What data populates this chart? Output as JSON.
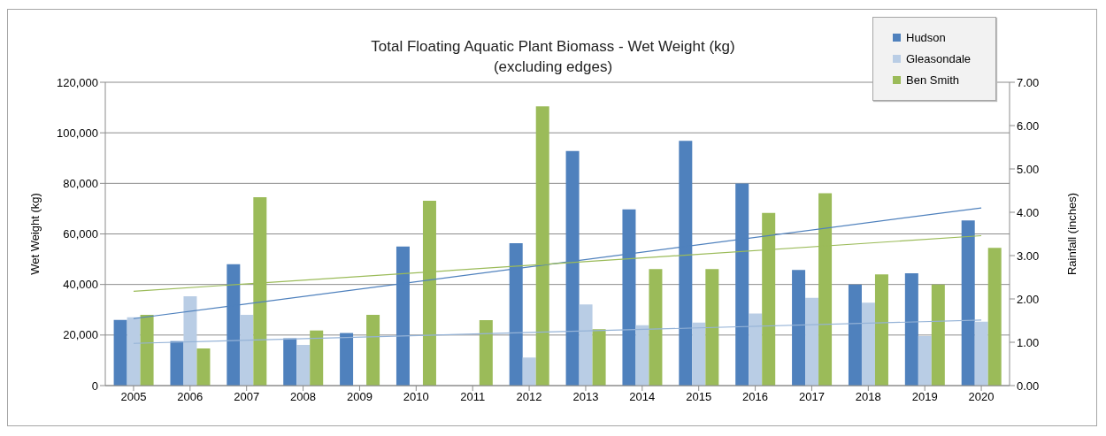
{
  "chart_data": {
    "type": "bar",
    "title": "Total Floating Aquatic Plant Biomass - Wet Weight (kg)",
    "subtitle": "(excluding edges)",
    "ylabel": "Wet Weight (kg)",
    "y2label": "Rainfall (inches)",
    "categories": [
      "2005",
      "2006",
      "2007",
      "2008",
      "2009",
      "2010",
      "2011",
      "2012",
      "2013",
      "2014",
      "2015",
      "2016",
      "2017",
      "2018",
      "2019",
      "2020"
    ],
    "series": [
      {
        "name": "Hudson",
        "color": "#4f81bd",
        "values": [
          26000,
          17600,
          48000,
          18700,
          20800,
          55000,
          null,
          56300,
          92800,
          69700,
          96800,
          79900,
          45700,
          40000,
          44400,
          65300
        ]
      },
      {
        "name": "Gleasondale",
        "color": "#b9cde5",
        "values": [
          27000,
          35300,
          28000,
          16100,
          null,
          null,
          null,
          11100,
          32100,
          23900,
          24900,
          28500,
          34700,
          32800,
          19600,
          25300
        ]
      },
      {
        "name": "Ben Smith",
        "color": "#9bbb59",
        "values": [
          28000,
          14700,
          74500,
          21800,
          28000,
          73100,
          25900,
          110500,
          22300,
          46100,
          46100,
          68300,
          76100,
          44000,
          40000,
          54500
        ]
      },
      {
        "type": "line",
        "color": "#4f81bd",
        "values": [
          26500,
          null,
          null,
          null,
          null,
          null,
          null,
          null,
          null,
          null,
          null,
          null,
          null,
          null,
          null,
          70300
        ]
      },
      {
        "type": "line",
        "color": "#95b3d7",
        "values": [
          16700,
          null,
          null,
          null,
          null,
          null,
          null,
          null,
          null,
          null,
          null,
          null,
          null,
          null,
          null,
          25900
        ]
      },
      {
        "type": "line",
        "color": "#9bbb59",
        "values": [
          37300,
          null,
          null,
          null,
          null,
          null,
          null,
          null,
          null,
          null,
          null,
          null,
          null,
          null,
          null,
          59300
        ]
      }
    ],
    "ylim": [
      0,
      120000
    ],
    "yticks": [
      0,
      {
        "value": 20000,
        "label": "20,000"
      },
      {
        "value": 40000,
        "label": "40,000"
      },
      {
        "value": 60000,
        "label": "60,000"
      },
      {
        "value": 80000,
        "label": "80,000"
      },
      {
        "value": 100000,
        "label": "100,000"
      },
      {
        "value": 120000,
        "label": "120,000"
      }
    ],
    "y2lim": [
      0,
      7
    ],
    "y2ticks": [
      {
        "value": 0,
        "label": "0.00"
      },
      {
        "value": 1,
        "label": "1.00"
      },
      {
        "value": 2,
        "label": "2.00"
      },
      {
        "value": 3,
        "label": "3.00"
      },
      {
        "value": 4,
        "label": "4.00"
      },
      {
        "value": 5,
        "label": "5.00"
      },
      {
        "value": 6,
        "label": "6.00"
      },
      {
        "value": 7,
        "label": "7.00"
      }
    ],
    "grid": "y",
    "legend": "top right",
    "marker": "none",
    "line_style": "solid"
  }
}
